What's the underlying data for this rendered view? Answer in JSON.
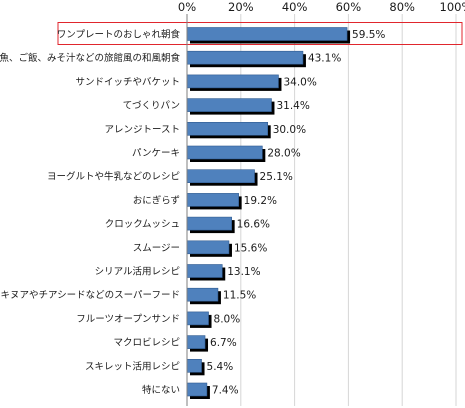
{
  "chart_data": {
    "type": "bar",
    "orientation": "horizontal",
    "categories": [
      "ワンプレートのおしゃれ朝食",
      "焼魚、ご飯、みそ汁などの旅館風の和風朝食",
      "サンドイッチやバケット",
      "てづくりパン",
      "アレンジトースト",
      "パンケーキ",
      "ヨーグルトや牛乳などのレシピ",
      "おにぎらず",
      "クロックムッシュ",
      "スムージー",
      "シリアル活用レシピ",
      "キヌアやチアシードなどのスーパーフード",
      "フルーツオープンサンド",
      "マクロビレシピ",
      "スキレット活用レシピ",
      "特にない"
    ],
    "values": [
      59.5,
      43.1,
      34.0,
      31.4,
      30.0,
      28.0,
      25.1,
      19.2,
      16.6,
      15.6,
      13.1,
      11.5,
      8.0,
      6.7,
      5.4,
      7.4
    ],
    "value_labels": [
      "59.5%",
      "43.1%",
      "34.0%",
      "31.4%",
      "30.0%",
      "28.0%",
      "25.1%",
      "19.2%",
      "16.6%",
      "15.6%",
      "13.1%",
      "11.5%",
      "8.0%",
      "6.7%",
      "5.4%",
      "7.4%"
    ],
    "x_ticks": [
      "0%",
      "20%",
      "40%",
      "60%",
      "80%",
      "100%"
    ],
    "xlim": [
      0,
      100
    ],
    "axis_position": "top",
    "grid": true,
    "highlighted_category_index": 0,
    "colors": {
      "bar": "#4f81bd",
      "bar_edge": "#2f5a8f",
      "bar_shadow": "#000000",
      "grid": "#d6d6d6",
      "highlight_box": "#e0262d"
    }
  }
}
